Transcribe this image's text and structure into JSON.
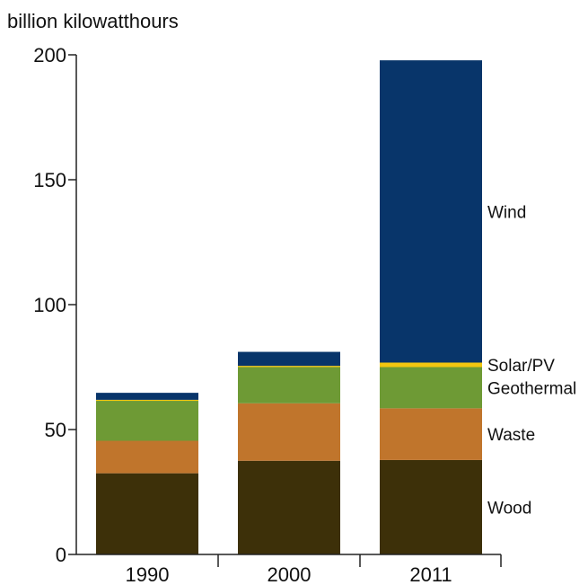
{
  "chart_data": {
    "type": "bar",
    "stacked": true,
    "ylabel": "billion kilowatthours",
    "categories": [
      "1990",
      "2000",
      "2011"
    ],
    "ylim": [
      0,
      200
    ],
    "yticks": [
      0,
      50,
      100,
      150,
      200
    ],
    "grid": false,
    "legend": "labels beside last bar",
    "series": [
      {
        "name": "Wood",
        "color": "#3d3009",
        "values": [
          32.5,
          37.5,
          37.8
        ]
      },
      {
        "name": "Waste",
        "color": "#c0752c",
        "values": [
          13.0,
          23.0,
          20.7
        ]
      },
      {
        "name": "Geothermal",
        "color": "#6e9a35",
        "values": [
          16.0,
          14.5,
          16.5
        ]
      },
      {
        "name": "Solar/PV",
        "color": "#f2c60f",
        "values": [
          0.4,
          0.5,
          1.8
        ]
      },
      {
        "name": "Wind",
        "color": "#08356a",
        "values": [
          2.8,
          5.6,
          121
        ]
      }
    ]
  }
}
